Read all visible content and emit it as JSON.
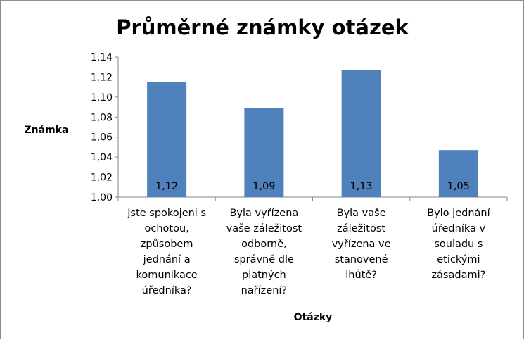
{
  "chart_data": {
    "type": "bar",
    "title": "Průměrné známky otázek",
    "xlabel": "Otázky",
    "ylabel": "Známka",
    "ylim": [
      1.0,
      1.14
    ],
    "ytick_step": 0.02,
    "ytick_labels": [
      "1,00",
      "1,02",
      "1,04",
      "1,06",
      "1,08",
      "1,10",
      "1,12",
      "1,14"
    ],
    "categories": [
      [
        "Jste spokojeni s",
        "ochotou,",
        "způsobem",
        "jednání a",
        "komunikace",
        "úředníka?"
      ],
      [
        "Byla vyřízena",
        "vaše záležitost",
        "odborně,",
        "správně dle",
        "platných",
        "nařízení?"
      ],
      [
        "Byla vaše",
        "záležitost",
        "vyřízena ve",
        "stanovené",
        "lhůtě?"
      ],
      [
        "Bylo jednání",
        "úředníka v",
        "souladu s",
        "etickými",
        "zásadami?"
      ]
    ],
    "values": [
      1.115,
      1.089,
      1.127,
      1.047
    ],
    "data_labels": [
      "1,12",
      "1,09",
      "1,13",
      "1,05"
    ],
    "bar_color": "#4f81bd",
    "legend": "none",
    "grid": false
  }
}
